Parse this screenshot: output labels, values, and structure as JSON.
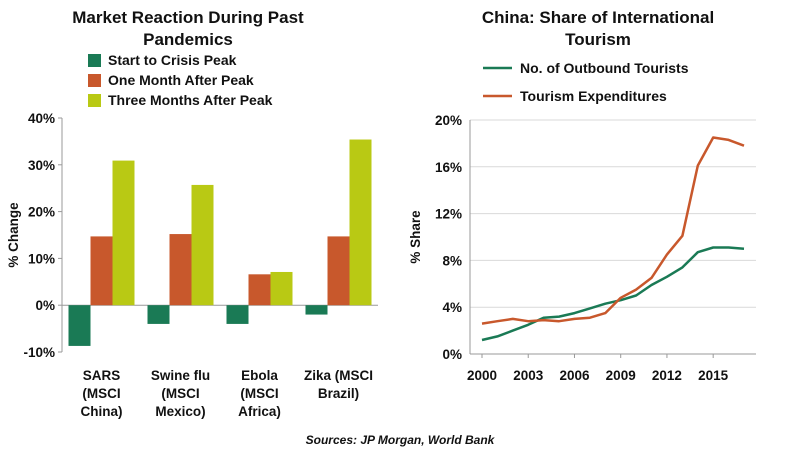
{
  "source_note": "Sources: JP Morgan, World Bank",
  "chart_data": [
    {
      "type": "bar",
      "title": [
        "Market Reaction During Past",
        "Pandemics"
      ],
      "ylabel": "% Change",
      "ylim": [
        -10,
        40
      ],
      "yticks": [
        "-10%",
        "0%",
        "10%",
        "20%",
        "30%",
        "40%"
      ],
      "categories": [
        [
          "SARS",
          "(MSCI",
          "China)"
        ],
        [
          "Swine flu",
          "(MSCI",
          "Mexico)"
        ],
        [
          "Ebola",
          "(MSCI",
          "Africa)"
        ],
        [
          "Zika (MSCI",
          "Brazil)"
        ]
      ],
      "series": [
        {
          "name": "Start to Crisis Peak",
          "color": "#1a7a55",
          "values": [
            -8.7,
            -4.0,
            -4.0,
            -2.0
          ]
        },
        {
          "name": "One Month After Peak",
          "color": "#c8582c",
          "values": [
            14.7,
            15.2,
            6.6,
            14.7
          ]
        },
        {
          "name": "Three Months After Peak",
          "color": "#b9c914",
          "values": [
            30.9,
            25.7,
            7.1,
            35.4
          ]
        }
      ],
      "grid": "none",
      "legend": "top"
    },
    {
      "type": "line",
      "title": [
        "China: Share of International",
        "Tourism"
      ],
      "ylabel": "% Share",
      "ylim": [
        0,
        20
      ],
      "yticks": [
        "0%",
        "4%",
        "8%",
        "12%",
        "16%",
        "20%"
      ],
      "xlim": [
        2000,
        2017
      ],
      "xticks": [
        "2000",
        "2003",
        "2006",
        "2009",
        "2012",
        "2015"
      ],
      "x": [
        2000,
        2001,
        2002,
        2003,
        2004,
        2005,
        2006,
        2007,
        2008,
        2009,
        2010,
        2011,
        2012,
        2013,
        2014,
        2015,
        2016,
        2017
      ],
      "series": [
        {
          "name": "No. of Outbound Tourists",
          "color": "#1a7a55",
          "values": [
            1.2,
            1.5,
            2.0,
            2.5,
            3.1,
            3.2,
            3.5,
            3.9,
            4.3,
            4.6,
            5.0,
            5.9,
            6.6,
            7.4,
            8.7,
            9.1,
            9.1,
            9.0
          ]
        },
        {
          "name": "Tourism Expenditures",
          "color": "#c8582c",
          "values": [
            2.6,
            2.8,
            3.0,
            2.8,
            2.9,
            2.8,
            3.0,
            3.1,
            3.5,
            4.8,
            5.5,
            6.5,
            8.5,
            10.1,
            16.1,
            18.5,
            18.3,
            17.8
          ]
        }
      ],
      "grid": "horizontal",
      "legend": "top"
    }
  ]
}
